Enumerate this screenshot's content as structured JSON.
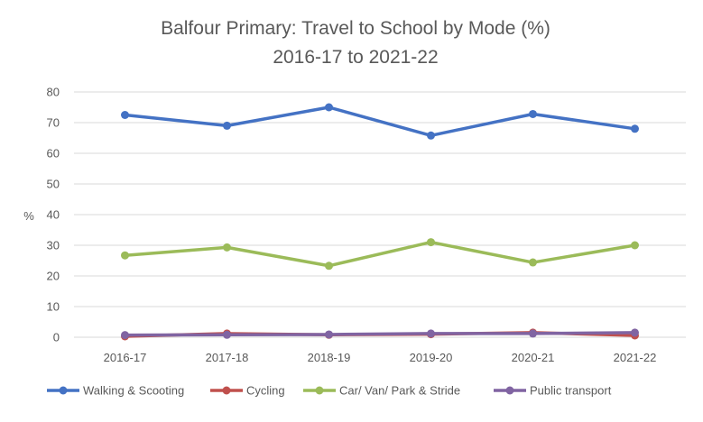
{
  "chart_data": {
    "type": "line",
    "title": "Balfour Primary: Travel to School by Mode (%)",
    "subtitle": "2016-17 to 2021-22",
    "xlabel": "",
    "ylabel": "%",
    "categories": [
      "2016-17",
      "2017-18",
      "2018-19",
      "2019-20",
      "2020-21",
      "2021-22"
    ],
    "ylim": [
      0,
      80
    ],
    "yticks": [
      0,
      10,
      20,
      30,
      40,
      50,
      60,
      70,
      80
    ],
    "grid": true,
    "legend_position": "bottom",
    "series": [
      {
        "name": "Walking & Scooting",
        "color": "#4472C4",
        "values": [
          72.5,
          69,
          75,
          65.8,
          72.8,
          68
        ]
      },
      {
        "name": "Cycling",
        "color": "#C0504D",
        "values": [
          0.3,
          1.2,
          0.8,
          1.0,
          1.5,
          0.6
        ]
      },
      {
        "name": "Car/ Van/ Park & Stride",
        "color": "#9BBB59",
        "values": [
          26.7,
          29.3,
          23.3,
          31.0,
          24.4,
          30.0
        ]
      },
      {
        "name": "Public transport",
        "color": "#8064A2",
        "values": [
          0.7,
          0.8,
          0.9,
          1.2,
          1.2,
          1.5
        ]
      }
    ]
  }
}
